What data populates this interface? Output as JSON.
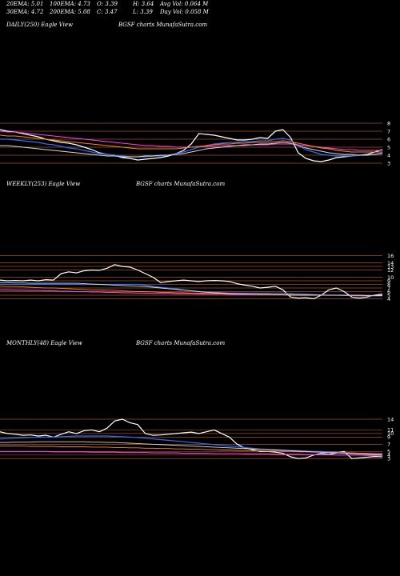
{
  "header": {
    "ema20": "20EMA: 5.01",
    "ema30": "30EMA: 4.72",
    "ema100": "100EMA: 4.73",
    "ema200": "200EMA: 5.08",
    "open": "O: 3.39",
    "close": "C: 3.47",
    "high": "H: 3.64",
    "low": "L: 3.39",
    "avg_vol": "Avg Vol: 0.064  M",
    "day_vol": "Day Vol: 0.058 M"
  },
  "colors": {
    "background": "#000000",
    "price": "#ffffff",
    "ema_blue": "#2a6cff",
    "ema_pink": "#ff3cff",
    "ema_orange": "#ff8a00",
    "ema_white": "#d8d8d8",
    "gridline": "#a0501a"
  },
  "chart_data": [
    {
      "type": "line",
      "title": "DAILY(250) Eagle  View",
      "subtitle": "BGSF charts MunafaSutra.com",
      "y_ticks": [
        "8",
        "7",
        "6",
        "5",
        "4",
        "3"
      ],
      "y_values": [
        8,
        7,
        6,
        5,
        4,
        3
      ],
      "ylim": [
        2.6,
        8.4
      ],
      "series": [
        {
          "role": "price",
          "values": [
            7.2,
            7.0,
            6.9,
            6.7,
            6.5,
            6.3,
            6.0,
            5.8,
            5.6,
            5.5,
            5.3,
            5.0,
            4.7,
            4.3,
            4.1,
            4.0,
            3.7,
            3.6,
            3.4,
            3.5,
            3.6,
            3.7,
            3.9,
            4.2,
            4.6,
            5.4,
            6.7,
            6.6,
            6.5,
            6.3,
            6.1,
            5.9,
            5.9,
            6.0,
            6.2,
            6.1,
            7.0,
            7.2,
            6.2,
            4.3,
            3.6,
            3.3,
            3.2,
            3.4,
            3.7,
            3.8,
            3.9,
            4.0,
            4.1,
            4.4,
            4.7
          ]
        },
        {
          "role": "ema-fast",
          "values": [
            6.0,
            6.0,
            5.9,
            5.8,
            5.7,
            5.6,
            5.4,
            5.3,
            5.1,
            4.9,
            4.8,
            4.6,
            4.4,
            4.2,
            4.1,
            4.0,
            3.9,
            3.8,
            3.8,
            3.8,
            3.9,
            3.9,
            4.0,
            4.2,
            4.4,
            4.7,
            5.0,
            5.2,
            5.4,
            5.5,
            5.6,
            5.6,
            5.7,
            5.7,
            5.8,
            5.8,
            6.0,
            6.1,
            5.9,
            5.2,
            4.7,
            4.4,
            4.1,
            4.0,
            3.9,
            3.9,
            3.9,
            4.0,
            4.0,
            4.1,
            4.3
          ]
        },
        {
          "role": "ema-pink",
          "values": [
            7.0,
            6.9,
            6.9,
            6.8,
            6.7,
            6.6,
            6.5,
            6.4,
            6.3,
            6.2,
            6.1,
            6.0,
            5.9,
            5.8,
            5.7,
            5.6,
            5.5,
            5.4,
            5.3,
            5.2,
            5.2,
            5.1,
            5.1,
            5.0,
            5.0,
            5.0,
            5.1,
            5.1,
            5.1,
            5.2,
            5.2,
            5.2,
            5.2,
            5.3,
            5.3,
            5.3,
            5.4,
            5.4,
            5.4,
            5.3,
            5.2,
            5.1,
            5.0,
            4.9,
            4.8,
            4.7,
            4.7,
            4.6,
            4.6,
            4.6,
            4.6
          ]
        },
        {
          "role": "ema-orange",
          "values": [
            6.5,
            6.4,
            6.4,
            6.3,
            6.2,
            6.1,
            6.0,
            5.9,
            5.8,
            5.7,
            5.6,
            5.5,
            5.4,
            5.3,
            5.2,
            5.1,
            5.0,
            4.9,
            4.8,
            4.8,
            4.8,
            4.8,
            4.8,
            4.8,
            4.9,
            5.0,
            5.1,
            5.2,
            5.3,
            5.4,
            5.4,
            5.5,
            5.5,
            5.6,
            5.6,
            5.6,
            5.7,
            5.8,
            5.7,
            5.5,
            5.3,
            5.1,
            4.9,
            4.8,
            4.6,
            4.5,
            4.4,
            4.4,
            4.4,
            4.4,
            4.4
          ]
        },
        {
          "role": "ema-slow",
          "values": [
            5.2,
            5.2,
            5.1,
            5.0,
            4.9,
            4.8,
            4.7,
            4.6,
            4.5,
            4.4,
            4.3,
            4.2,
            4.1,
            4.0,
            3.9,
            3.9,
            3.8,
            3.8,
            3.8,
            3.9,
            3.9,
            4.0,
            4.0,
            4.1,
            4.2,
            4.4,
            4.6,
            4.8,
            4.9,
            5.0,
            5.1,
            5.2,
            5.3,
            5.3,
            5.4,
            5.4,
            5.5,
            5.6,
            5.5,
            5.2,
            4.9,
            4.7,
            4.5,
            4.3,
            4.2,
            4.1,
            4.1,
            4.0,
            4.0,
            4.1,
            4.2
          ]
        }
      ]
    },
    {
      "type": "line",
      "title": "WEEKLY(253) Eagle  View",
      "subtitle": "BGSF charts MunafaSutra.com",
      "y_ticks": [
        "16",
        "14",
        "13",
        "12",
        "10",
        "9",
        "8",
        "7",
        "6",
        "5",
        "4"
      ],
      "y_values": [
        16,
        14,
        13,
        12,
        10,
        9,
        8,
        7,
        6,
        5,
        4
      ],
      "ylim": [
        3,
        17
      ],
      "series": [
        {
          "role": "price",
          "values": [
            9.2,
            9.0,
            9.1,
            9.0,
            9.2,
            9.0,
            9.3,
            9.2,
            11.0,
            11.5,
            11.2,
            11.8,
            12.0,
            11.9,
            12.5,
            13.5,
            13.0,
            12.8,
            12.0,
            11.0,
            10.0,
            8.5,
            8.8,
            9.0,
            9.2,
            9.0,
            8.8,
            9.0,
            9.1,
            9.0,
            8.8,
            8.2,
            7.8,
            7.5,
            7.0,
            7.2,
            7.5,
            6.5,
            4.5,
            4.2,
            4.3,
            4.0,
            5.0,
            6.5,
            7.0,
            6.0,
            4.5,
            4.2,
            4.5,
            5.0,
            5.3
          ]
        },
        {
          "role": "ema-fast",
          "values": [
            8.0,
            8.0,
            8.0,
            8.0,
            8.0,
            8.0,
            8.0,
            8.0,
            8.0,
            8.0,
            8.0,
            8.0,
            8.0,
            8.0,
            8.0,
            8.0,
            8.0,
            8.0,
            8.0,
            7.8,
            7.5,
            7.2,
            7.0,
            6.8,
            6.5,
            6.2,
            6.0,
            5.9,
            5.8,
            5.7,
            5.6,
            5.6,
            5.6,
            5.6,
            5.6,
            5.6,
            5.6,
            5.6,
            5.5,
            5.4,
            5.3,
            5.2,
            5.1,
            5.0,
            5.0,
            4.9,
            4.9,
            4.8,
            4.8,
            4.8,
            4.8
          ]
        },
        {
          "role": "ema-pink",
          "values": [
            6.5,
            6.5,
            6.4,
            6.4,
            6.3,
            6.3,
            6.2,
            6.2,
            6.1,
            6.1,
            6.0,
            6.0,
            5.9,
            5.9,
            5.8,
            5.8,
            5.7,
            5.7,
            5.6,
            5.6,
            5.5,
            5.5,
            5.5,
            5.4,
            5.4,
            5.4,
            5.3,
            5.3,
            5.3,
            5.3,
            5.2,
            5.2,
            5.2,
            5.2,
            5.2,
            5.2,
            5.2,
            5.2,
            5.1,
            5.1,
            5.1,
            5.0,
            5.0,
            5.0,
            5.0,
            5.0,
            4.9,
            4.9,
            4.9,
            4.9,
            4.9
          ]
        },
        {
          "role": "ema-orange",
          "values": [
            7.5,
            7.4,
            7.4,
            7.3,
            7.2,
            7.1,
            7.0,
            7.0,
            6.9,
            6.8,
            6.7,
            6.6,
            6.5,
            6.5,
            6.4,
            6.3,
            6.2,
            6.1,
            6.0,
            6.0,
            5.9,
            5.8,
            5.8,
            5.7,
            5.7,
            5.6,
            5.6,
            5.5,
            5.5,
            5.5,
            5.4,
            5.4,
            5.4,
            5.3,
            5.3,
            5.3,
            5.2,
            5.2,
            5.2,
            5.1,
            5.1,
            5.1,
            5.0,
            5.0,
            5.0,
            5.0,
            5.0,
            4.9,
            4.9,
            4.9,
            4.9
          ]
        },
        {
          "role": "ema-slow",
          "values": [
            8.5,
            8.5,
            8.4,
            8.4,
            8.3,
            8.3,
            8.3,
            8.3,
            8.3,
            8.3,
            8.3,
            8.2,
            8.1,
            8.0,
            7.9,
            7.8,
            7.7,
            7.6,
            7.5,
            7.4,
            7.2,
            7.0,
            6.8,
            6.6,
            6.4,
            6.2,
            6.0,
            5.8,
            5.7,
            5.6,
            5.5,
            5.4,
            5.3,
            5.3,
            5.2,
            5.2,
            5.1,
            5.1,
            5.0,
            5.0,
            5.0,
            5.0,
            5.0,
            5.0,
            5.0,
            5.0,
            5.0,
            5.0,
            4.9,
            4.9,
            4.9
          ]
        }
      ]
    },
    {
      "type": "line",
      "title": "MONTHLY(48) Eagle  View",
      "subtitle": "BGSF charts MunafaSutra.com",
      "y_ticks": [
        "14",
        "11",
        "10",
        "9",
        "7",
        "5",
        "4",
        "3"
      ],
      "y_values": [
        14,
        11,
        10,
        9,
        7,
        5,
        4,
        3
      ],
      "ylim": [
        1.5,
        16
      ],
      "series": [
        {
          "role": "price",
          "values": [
            10.5,
            10.0,
            9.8,
            9.5,
            9.6,
            9.3,
            9.5,
            9.0,
            9.8,
            10.5,
            10.0,
            10.8,
            11.0,
            10.5,
            11.5,
            13.5,
            14.0,
            13.0,
            12.5,
            10.0,
            9.5,
            9.6,
            9.8,
            10.0,
            10.2,
            10.4,
            10.0,
            10.5,
            11.0,
            10.0,
            9.0,
            7.0,
            6.0,
            5.5,
            5.0,
            5.0,
            4.8,
            4.5,
            3.5,
            3.0,
            3.2,
            4.0,
            4.5,
            4.2,
            4.6,
            5.0,
            3.0,
            3.2,
            3.4,
            3.6,
            3.5
          ]
        },
        {
          "role": "ema-fast",
          "values": [
            8.5,
            8.6,
            8.7,
            8.8,
            8.9,
            9.0,
            9.0,
            9.0,
            9.1,
            9.2,
            9.3,
            9.3,
            9.3,
            9.3,
            9.3,
            9.2,
            9.1,
            9.0,
            8.9,
            8.7,
            8.5,
            8.3,
            8.1,
            7.9,
            7.7,
            7.5,
            7.3,
            7.1,
            6.9,
            6.7,
            6.5,
            6.3,
            6.1,
            5.9,
            5.7,
            5.6,
            5.5,
            5.4,
            5.3,
            5.2,
            5.1,
            5.0,
            5.0,
            4.9,
            4.8,
            4.7,
            4.6,
            4.5,
            4.4,
            4.3,
            4.2
          ]
        },
        {
          "role": "ema-pink",
          "values": [
            5.0,
            5.0,
            5.0,
            5.0,
            5.0,
            5.0,
            5.0,
            4.9,
            4.9,
            4.9,
            4.9,
            4.9,
            4.8,
            4.8,
            4.8,
            4.8,
            4.7,
            4.7,
            4.7,
            4.7,
            4.6,
            4.6,
            4.6,
            4.6,
            4.5,
            4.5,
            4.5,
            4.5,
            4.4,
            4.4,
            4.4,
            4.4,
            4.3,
            4.3,
            4.3,
            4.3,
            4.2,
            4.2,
            4.2,
            4.2,
            4.1,
            4.1,
            4.1,
            4.1,
            4.0,
            4.0,
            4.0,
            4.0,
            3.9,
            3.9,
            3.9
          ]
        },
        {
          "role": "ema-orange",
          "values": [
            6.5,
            6.5,
            6.5,
            6.5,
            6.4,
            6.4,
            6.4,
            6.4,
            6.3,
            6.3,
            6.3,
            6.3,
            6.2,
            6.2,
            6.2,
            6.1,
            6.1,
            6.0,
            6.0,
            5.9,
            5.9,
            5.8,
            5.8,
            5.7,
            5.7,
            5.6,
            5.6,
            5.5,
            5.5,
            5.4,
            5.4,
            5.3,
            5.3,
            5.2,
            5.2,
            5.1,
            5.1,
            5.0,
            5.0,
            4.9,
            4.9,
            4.8,
            4.8,
            4.7,
            4.7,
            4.6,
            4.6,
            4.5,
            4.5,
            4.4,
            4.4
          ]
        },
        {
          "role": "ema-slow",
          "values": [
            7.5,
            7.5,
            7.6,
            7.6,
            7.6,
            7.7,
            7.7,
            7.7,
            7.7,
            7.7,
            7.7,
            7.7,
            7.6,
            7.6,
            7.5,
            7.5,
            7.4,
            7.3,
            7.2,
            7.1,
            7.0,
            6.9,
            6.8,
            6.7,
            6.6,
            6.5,
            6.4,
            6.3,
            6.2,
            6.1,
            6.0,
            5.9,
            5.8,
            5.7,
            5.6,
            5.5,
            5.4,
            5.3,
            5.2,
            5.1,
            5.0,
            4.9,
            4.8,
            4.7,
            4.6,
            4.5,
            4.4,
            4.3,
            4.2,
            4.1,
            4.0
          ]
        }
      ]
    }
  ]
}
